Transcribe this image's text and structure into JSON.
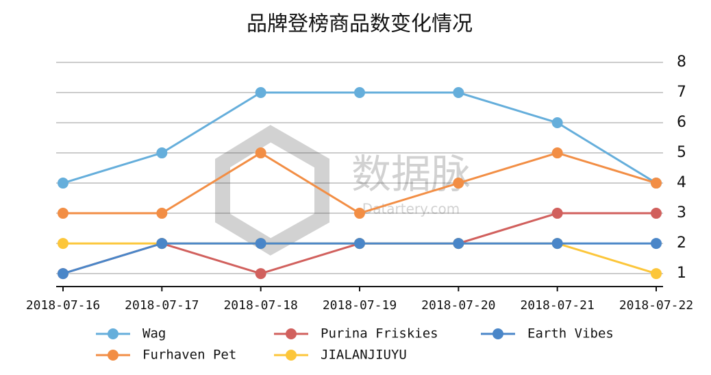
{
  "chart_data": {
    "type": "line",
    "title": "品牌登榜商品数变化情况",
    "categories": [
      "2018-07-16",
      "2018-07-17",
      "2018-07-18",
      "2018-07-19",
      "2018-07-20",
      "2018-07-21",
      "2018-07-22"
    ],
    "series": [
      {
        "name": "Wag",
        "color": "#65aedb",
        "values": [
          4,
          5,
          7,
          7,
          7,
          6,
          4
        ]
      },
      {
        "name": "Furhaven Pet",
        "color": "#f28e45",
        "values": [
          3,
          3,
          5,
          3,
          4,
          5,
          4
        ]
      },
      {
        "name": "Purina Friskies",
        "color": "#d1605d",
        "values": [
          1,
          2,
          1,
          2,
          2,
          3,
          3
        ]
      },
      {
        "name": "JIALANJIUYU",
        "color": "#fcc63a",
        "values": [
          2,
          2,
          2,
          2,
          2,
          2,
          1
        ]
      },
      {
        "name": "Earth Vibes",
        "color": "#4a86c8",
        "values": [
          1,
          2,
          2,
          2,
          2,
          2,
          2
        ]
      }
    ],
    "ylim": [
      0.57,
      8
    ],
    "yticks": [
      1,
      2,
      3,
      4,
      5,
      6,
      7,
      8
    ],
    "grid": true,
    "watermark": {
      "name": "数据脉",
      "url": "Datartery.com"
    }
  }
}
